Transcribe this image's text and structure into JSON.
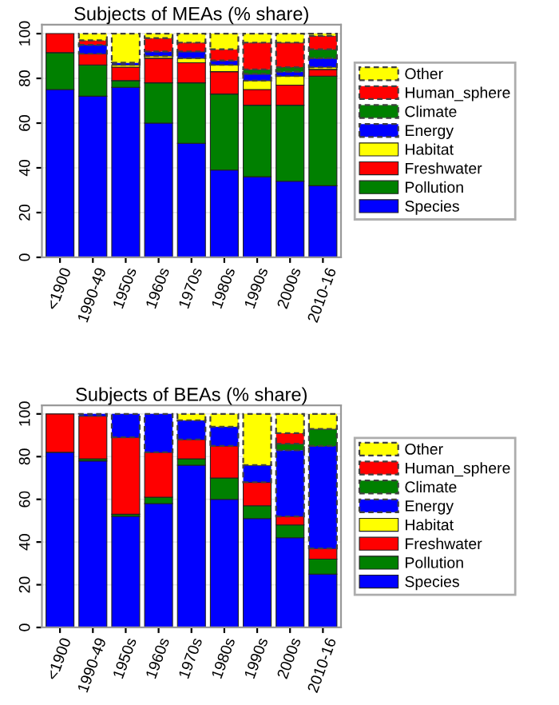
{
  "chart_data": [
    {
      "type": "bar",
      "title": "Subjects of MEAs (% share)",
      "stacked": true,
      "categories": [
        "<1900",
        "1990-49",
        "1950s",
        "1960s",
        "1970s",
        "1980s",
        "1990s",
        "2000s",
        "2010-16"
      ],
      "ylim": [
        0,
        104
      ],
      "yticks": [
        0,
        20,
        40,
        60,
        80,
        100
      ],
      "grid": "y",
      "legend": "right",
      "series": [
        {
          "name": "Species",
          "color": "#0000ff",
          "values": [
            75,
            72,
            76,
            60,
            51,
            39,
            36,
            34,
            32
          ]
        },
        {
          "name": "Pollution",
          "color": "#008000",
          "values": [
            16.5,
            14,
            3,
            18,
            27,
            34,
            32,
            34,
            49
          ]
        },
        {
          "name": "Freshwater",
          "color": "#ff0000",
          "values": [
            8.5,
            5,
            6,
            11,
            9,
            10,
            7,
            9,
            3
          ]
        },
        {
          "name": "Habitat",
          "color": "#ffff00",
          "values": [
            0,
            0,
            1,
            1,
            2,
            3,
            4,
            4,
            1
          ]
        },
        {
          "name": "Energy",
          "color": "#0000ff",
          "line_style": "dashed",
          "values": [
            0,
            4,
            1,
            2,
            3,
            2,
            3,
            2,
            4
          ]
        },
        {
          "name": "Climate",
          "color": "#008000",
          "line_style": "dashed",
          "values": [
            0,
            0,
            0,
            0,
            0,
            0,
            2,
            2,
            4
          ]
        },
        {
          "name": "Human_sphere",
          "color": "#ff0000",
          "line_style": "dashed",
          "values": [
            0,
            2,
            0,
            6,
            4,
            5,
            12,
            11,
            6
          ]
        },
        {
          "name": "Other",
          "color": "#ffff00",
          "line_style": "dashed",
          "values": [
            0,
            3,
            13,
            2,
            4,
            7,
            4,
            4,
            1
          ]
        }
      ]
    },
    {
      "type": "bar",
      "title": "Subjects of BEAs (% share)",
      "stacked": true,
      "categories": [
        "<1900",
        "1990-49",
        "1950s",
        "1960s",
        "1970s",
        "1980s",
        "1990s",
        "2000s",
        "2010-16"
      ],
      "ylim": [
        0,
        104
      ],
      "yticks": [
        0,
        20,
        40,
        60,
        80,
        100
      ],
      "grid": "y",
      "legend": "right",
      "series": [
        {
          "name": "Species",
          "color": "#0000ff",
          "values": [
            82,
            78,
            52,
            58,
            76,
            60,
            51,
            42,
            25
          ]
        },
        {
          "name": "Pollution",
          "color": "#008000",
          "values": [
            0,
            1,
            1,
            3,
            3,
            10,
            6,
            6,
            7
          ]
        },
        {
          "name": "Freshwater",
          "color": "#ff0000",
          "values": [
            18,
            20,
            36,
            21,
            9,
            15,
            11,
            4,
            5
          ]
        },
        {
          "name": "Habitat",
          "color": "#ffff00",
          "values": [
            0,
            0,
            0,
            0,
            0,
            0,
            0,
            0,
            0
          ]
        },
        {
          "name": "Energy",
          "color": "#0000ff",
          "line_style": "dashed",
          "values": [
            0,
            1,
            11,
            18,
            9,
            9,
            8,
            31,
            48
          ]
        },
        {
          "name": "Climate",
          "color": "#008000",
          "line_style": "dashed",
          "values": [
            0,
            0,
            0,
            0,
            0,
            0,
            0,
            3,
            8
          ]
        },
        {
          "name": "Human_sphere",
          "color": "#ff0000",
          "line_style": "dashed",
          "values": [
            0,
            0,
            0,
            0,
            0,
            0,
            0,
            5,
            0
          ]
        },
        {
          "name": "Other",
          "color": "#ffff00",
          "line_style": "dashed",
          "values": [
            0,
            0,
            0,
            0,
            3,
            6,
            24,
            9,
            7
          ]
        }
      ]
    }
  ]
}
